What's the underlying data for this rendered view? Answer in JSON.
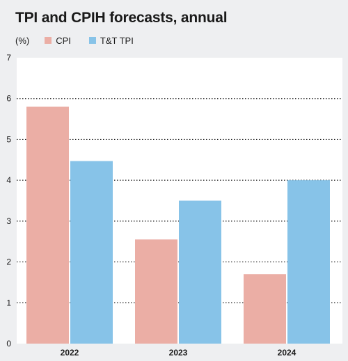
{
  "title": "TPI and CPIH forecasts, annual",
  "unit_label": "(%)",
  "colors": {
    "background": "#eeeff1",
    "plot_background": "#ffffff",
    "cpi": "#ebaea5",
    "tpi": "#87c3e8",
    "grid": "#1a1a1a"
  },
  "chart_data": {
    "type": "bar",
    "title": "TPI and CPIH forecasts, annual",
    "xlabel": "",
    "ylabel": "(%)",
    "categories": [
      "2022",
      "2023",
      "2024"
    ],
    "series": [
      {
        "name": "CPI",
        "color": "#ebaea5",
        "values": [
          5.8,
          2.55,
          1.7
        ]
      },
      {
        "name": "T&T TPI",
        "color": "#87c3e8",
        "values": [
          4.47,
          3.5,
          4.0
        ]
      }
    ],
    "ylim": [
      0,
      7
    ],
    "yticks": [
      0,
      1,
      2,
      3,
      4,
      5,
      6,
      7
    ],
    "grid": "horizontal dotted",
    "legend_placement": "top-left"
  }
}
